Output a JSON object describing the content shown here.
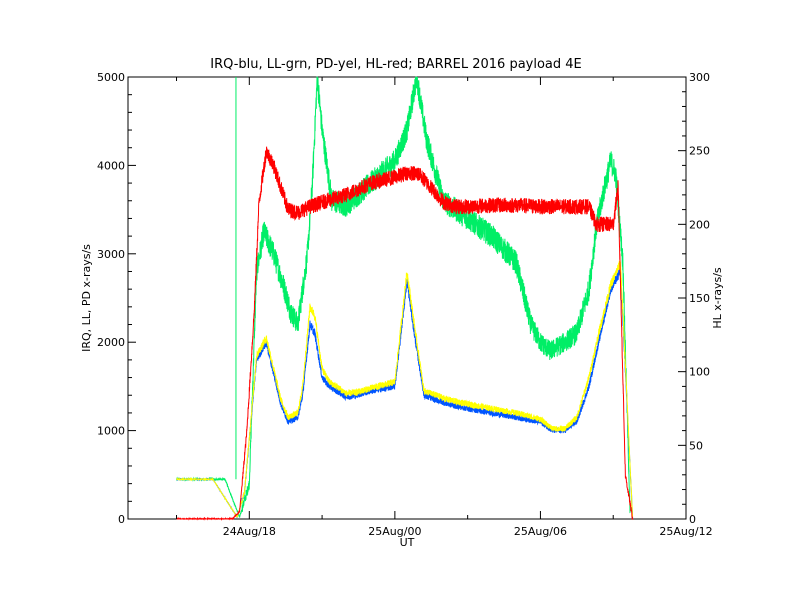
{
  "chart_data": {
    "type": "line",
    "title": "IRQ-blu, LL-grn, PD-yel, HL-red; BARREL 2016 payload 4E",
    "xlabel": "UT",
    "ylabel_left": "IRQ, LL, PD x-rays/s",
    "ylabel_right": "HL x-rays/s",
    "x_ticks": [
      "24Aug/18",
      "25Aug/00",
      "25Aug/06",
      "25Aug/12"
    ],
    "x_tick_hours": [
      18,
      24,
      30,
      36
    ],
    "xlim_hours": [
      13,
      36
    ],
    "ylim_left": [
      0,
      5000
    ],
    "ylim_right": [
      0,
      300
    ],
    "y_ticks_left": [
      "0",
      "1000",
      "2000",
      "3000",
      "4000",
      "5000"
    ],
    "y_ticks_right": [
      "0",
      "50",
      "100",
      "150",
      "200",
      "250",
      "300"
    ],
    "grid": false,
    "series": [
      {
        "name": "IRQ",
        "color": "#0055ff",
        "axis": "left",
        "x": [
          15.0,
          16.5,
          17.5,
          17.8,
          18.3,
          18.7,
          19.3,
          19.6,
          20.0,
          20.2,
          20.5,
          20.7,
          21.0,
          21.3,
          21.6,
          22.0,
          22.4,
          23.0,
          24.0,
          24.5,
          24.8,
          25.2,
          25.7,
          26.2,
          27.0,
          28.0,
          29.0,
          30.0,
          30.5,
          31.0,
          31.5,
          32.0,
          32.4,
          32.9,
          33.3,
          33.8
        ],
        "y": [
          450,
          450,
          20,
          300,
          1800,
          2000,
          1300,
          1100,
          1150,
          1400,
          2200,
          2100,
          1600,
          1500,
          1450,
          1380,
          1400,
          1450,
          1500,
          2700,
          2100,
          1400,
          1350,
          1300,
          1250,
          1200,
          1150,
          1100,
          1000,
          1000,
          1100,
          1500,
          2000,
          2600,
          2800,
          0
        ]
      },
      {
        "name": "LL",
        "color": "#00ee66",
        "axis": "left",
        "x": [
          15.0,
          16.5,
          17.0,
          17.6,
          18.0,
          18.3,
          18.6,
          19.0,
          19.4,
          19.7,
          20.0,
          20.2,
          20.4,
          20.6,
          20.8,
          21.0,
          21.4,
          22.0,
          23.0,
          24.0,
          24.5,
          24.9,
          25.3,
          26.0,
          27.0,
          28.0,
          29.0,
          29.6,
          30.0,
          30.4,
          31.0,
          31.5,
          32.0,
          32.3,
          32.6,
          32.9,
          33.1,
          33.4,
          33.7
        ],
        "y": [
          450,
          450,
          450,
          20,
          400,
          2800,
          3250,
          3000,
          2650,
          2350,
          2200,
          2600,
          3000,
          3800,
          5000,
          4400,
          3600,
          3550,
          3800,
          4050,
          4400,
          5000,
          4300,
          3600,
          3400,
          3200,
          2900,
          2200,
          2000,
          1900,
          2000,
          2100,
          2600,
          3300,
          3700,
          4050,
          3900,
          2900,
          0
        ]
      },
      {
        "name": "PD",
        "color": "#ffff00",
        "axis": "left",
        "x": [
          15.0,
          16.5,
          17.5,
          17.8,
          18.3,
          18.7,
          19.3,
          19.6,
          20.0,
          20.2,
          20.5,
          20.7,
          21.0,
          21.3,
          21.6,
          22.0,
          22.4,
          23.0,
          24.0,
          24.5,
          24.8,
          25.2,
          25.7,
          26.2,
          27.0,
          28.0,
          29.0,
          30.0,
          30.5,
          31.0,
          31.5,
          32.0,
          32.4,
          32.9,
          33.3,
          33.8
        ],
        "y": [
          450,
          450,
          20,
          300,
          1850,
          2050,
          1350,
          1150,
          1200,
          1500,
          2400,
          2300,
          1700,
          1550,
          1500,
          1420,
          1430,
          1480,
          1550,
          2800,
          2200,
          1450,
          1400,
          1350,
          1300,
          1250,
          1200,
          1130,
          1020,
          1020,
          1150,
          1600,
          2100,
          2650,
          2900,
          0
        ]
      },
      {
        "name": "HL",
        "color": "#ff0000",
        "axis": "right",
        "x": [
          15.0,
          16.5,
          17.3,
          17.6,
          17.9,
          18.2,
          18.4,
          18.7,
          19.0,
          19.3,
          19.6,
          20.0,
          20.5,
          21.0,
          22.0,
          23.0,
          24.0,
          24.5,
          25.0,
          25.5,
          26.0,
          26.5,
          27.0,
          28.0,
          29.0,
          30.0,
          31.0,
          32.0,
          32.3,
          33.0,
          33.2,
          33.5,
          33.8
        ],
        "y": [
          0,
          0,
          0,
          5,
          60,
          140,
          215,
          250,
          240,
          225,
          210,
          208,
          212,
          215,
          220,
          228,
          232,
          235,
          234,
          225,
          215,
          212,
          212,
          213,
          213,
          212,
          212,
          212,
          200,
          200,
          225,
          30,
          0
        ]
      }
    ]
  }
}
